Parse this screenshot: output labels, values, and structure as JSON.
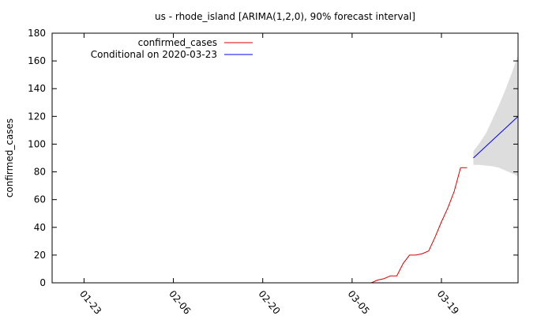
{
  "chart_data": {
    "type": "line",
    "title": "us - rhode_island [ARIMA(1,2,0), 90% forecast interval]",
    "xlabel": "",
    "ylabel": "confirmed_cases",
    "xlim": [
      "2020-01-18",
      "2020-03-31"
    ],
    "ylim": [
      0,
      180
    ],
    "x_ticks": [
      "01-23",
      "02-06",
      "02-20",
      "03-05",
      "03-19"
    ],
    "x_tick_dates": [
      "2020-01-23",
      "2020-02-06",
      "2020-02-20",
      "2020-03-05",
      "2020-03-19"
    ],
    "y_ticks": [
      0,
      20,
      40,
      60,
      80,
      100,
      120,
      140,
      160,
      180
    ],
    "grid": false,
    "legend_position": "top-left",
    "series": [
      {
        "name": "confirmed_cases",
        "color": "#dd0000",
        "x": [
          "2020-03-01",
          "2020-03-02",
          "2020-03-03",
          "2020-03-04",
          "2020-03-05",
          "2020-03-06",
          "2020-03-07",
          "2020-03-08",
          "2020-03-09",
          "2020-03-10",
          "2020-03-11",
          "2020-03-12",
          "2020-03-13",
          "2020-03-14",
          "2020-03-15",
          "2020-03-16",
          "2020-03-17",
          "2020-03-18",
          "2020-03-19",
          "2020-03-20",
          "2020-03-21",
          "2020-03-22"
        ],
        "values": [
          0,
          0,
          0,
          0,
          0,
          0,
          0,
          0,
          2,
          3,
          5,
          5,
          14,
          20,
          20,
          21,
          23,
          33,
          44,
          54,
          66,
          83
        ]
      },
      {
        "name": "Conditional on 2020-03-23",
        "color": "#0000ff",
        "x": [
          "2020-03-24",
          "2020-03-31"
        ],
        "values": [
          90,
          120
        ]
      }
    ],
    "extra_series": [
      {
        "color": "#dd0000",
        "x": [
          "2020-03-22",
          "2020-03-23"
        ],
        "values": [
          83,
          83
        ]
      }
    ],
    "forecast_interval": {
      "color": "#dddddd",
      "x": [
        "2020-03-24",
        "2020-03-25",
        "2020-03-26",
        "2020-03-27",
        "2020-03-28",
        "2020-03-29",
        "2020-03-30",
        "2020-03-31"
      ],
      "lower": [
        85,
        85,
        84.5,
        84,
        83,
        81,
        79,
        77
      ],
      "upper": [
        95,
        101,
        108,
        118,
        128,
        139,
        151,
        164
      ]
    }
  }
}
